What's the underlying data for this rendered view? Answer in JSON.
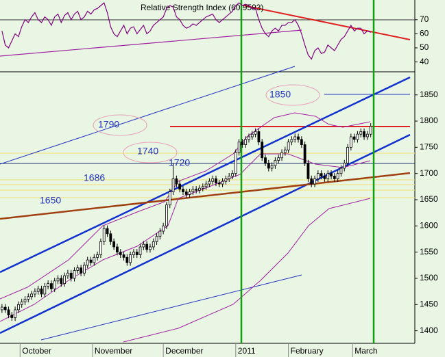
{
  "chart_data": [
    {
      "type": "line",
      "title": "Relative Strength Index (60.9593)",
      "color": "#800080",
      "xlim": [
        -0.6,
        125.4
      ],
      "ylim": [
        33,
        84
      ],
      "yticks": [
        40,
        50,
        60,
        70
      ],
      "values": [
        62,
        52,
        50,
        55,
        60,
        58,
        65,
        70,
        68,
        72,
        75,
        70,
        68,
        72,
        70,
        66,
        72,
        74,
        68,
        73,
        75,
        70,
        74,
        76,
        70,
        72,
        76,
        74,
        77,
        78,
        80,
        82,
        75,
        65,
        60,
        58,
        62,
        66,
        60,
        64,
        65,
        60,
        63,
        66,
        60,
        62,
        66,
        68,
        70,
        72,
        78,
        80,
        79,
        72,
        70,
        66,
        64,
        65,
        67,
        66,
        68,
        70,
        72,
        73,
        74,
        70,
        68,
        70,
        72,
        74,
        76,
        80,
        82,
        80,
        81,
        80,
        78,
        78,
        70,
        64,
        60,
        58,
        62,
        64,
        62,
        66,
        66,
        68,
        68,
        70,
        66,
        60,
        52,
        45,
        42,
        48,
        50,
        46,
        47,
        52,
        50,
        48,
        52,
        56,
        58,
        62,
        66,
        62,
        64,
        64,
        60,
        62,
        61
      ]
    },
    {
      "type": "candlestick",
      "xlim": [
        -0.6,
        125.4
      ],
      "ylim": [
        1376,
        1894
      ],
      "yticks": [
        1400,
        1450,
        1500,
        1550,
        1600,
        1650,
        1700,
        1750,
        1800,
        1850
      ],
      "xticks": [
        {
          "value": 5.5,
          "label": "October"
        },
        {
          "value": 27.5,
          "label": "November"
        },
        {
          "value": 49,
          "label": "December"
        },
        {
          "value": 71,
          "label": "2011"
        },
        {
          "value": 87,
          "label": "February"
        },
        {
          "value": 106.5,
          "label": "March"
        }
      ],
      "annotations": [
        "1850",
        "1790",
        "1740",
        "1720",
        "1686",
        "1650"
      ],
      "open": [
        1440,
        1445,
        1440,
        1430,
        1425,
        1440,
        1450,
        1455,
        1460,
        1465,
        1470,
        1475,
        1480,
        1470,
        1485,
        1490,
        1480,
        1495,
        1500,
        1490,
        1505,
        1510,
        1500,
        1515,
        1520,
        1510,
        1525,
        1535,
        1530,
        1540,
        1545,
        1570,
        1595,
        1585,
        1570,
        1560,
        1550,
        1545,
        1540,
        1530,
        1545,
        1550,
        1545,
        1560,
        1565,
        1555,
        1560,
        1570,
        1580,
        1590,
        1600,
        1640,
        1665,
        1690,
        1680,
        1670,
        1665,
        1660,
        1665,
        1670,
        1668,
        1672,
        1675,
        1680,
        1685,
        1690,
        1682,
        1680,
        1685,
        1690,
        1695,
        1700,
        1740,
        1760,
        1755,
        1765,
        1770,
        1775,
        1780,
        1760,
        1730,
        1720,
        1710,
        1715,
        1725,
        1730,
        1740,
        1745,
        1760,
        1765,
        1770,
        1765,
        1755,
        1720,
        1690,
        1680,
        1690,
        1700,
        1695,
        1690,
        1700,
        1695,
        1690,
        1700,
        1710,
        1720,
        1750,
        1770,
        1765,
        1775,
        1780,
        1770,
        1775
      ],
      "high": [
        1451,
        1451,
        1446,
        1436,
        1446,
        1456,
        1461,
        1466,
        1471,
        1476,
        1481,
        1486,
        1486,
        1491,
        1496,
        1496,
        1501,
        1506,
        1506,
        1511,
        1516,
        1516,
        1521,
        1526,
        1526,
        1531,
        1541,
        1541,
        1546,
        1551,
        1576,
        1601,
        1601,
        1591,
        1576,
        1566,
        1556,
        1551,
        1546,
        1551,
        1556,
        1556,
        1566,
        1571,
        1571,
        1566,
        1576,
        1586,
        1596,
        1606,
        1646,
        1671,
        1720,
        1696,
        1686,
        1676,
        1671,
        1671,
        1676,
        1676,
        1678,
        1681,
        1686,
        1691,
        1696,
        1696,
        1688,
        1691,
        1696,
        1701,
        1706,
        1746,
        1766,
        1766,
        1771,
        1776,
        1781,
        1786,
        1786,
        1766,
        1736,
        1726,
        1721,
        1731,
        1736,
        1746,
        1751,
        1766,
        1771,
        1776,
        1776,
        1771,
        1761,
        1726,
        1696,
        1696,
        1706,
        1706,
        1701,
        1706,
        1706,
        1701,
        1706,
        1716,
        1726,
        1756,
        1776,
        1776,
        1781,
        1786,
        1786,
        1781,
        1796
      ],
      "low": [
        1434,
        1434,
        1424,
        1419,
        1419,
        1434,
        1444,
        1449,
        1454,
        1459,
        1464,
        1469,
        1464,
        1464,
        1479,
        1474,
        1474,
        1489,
        1484,
        1484,
        1499,
        1494,
        1494,
        1509,
        1504,
        1504,
        1519,
        1524,
        1524,
        1534,
        1539,
        1564,
        1579,
        1564,
        1554,
        1544,
        1539,
        1534,
        1524,
        1524,
        1539,
        1539,
        1539,
        1554,
        1549,
        1549,
        1554,
        1564,
        1574,
        1584,
        1594,
        1634,
        1659,
        1674,
        1664,
        1659,
        1654,
        1654,
        1659,
        1662,
        1662,
        1666,
        1669,
        1674,
        1679,
        1676,
        1674,
        1674,
        1679,
        1684,
        1689,
        1694,
        1734,
        1749,
        1749,
        1759,
        1764,
        1769,
        1754,
        1724,
        1714,
        1704,
        1704,
        1709,
        1719,
        1724,
        1734,
        1739,
        1754,
        1759,
        1759,
        1749,
        1714,
        1684,
        1674,
        1674,
        1684,
        1689,
        1684,
        1684,
        1689,
        1684,
        1684,
        1694,
        1704,
        1714,
        1744,
        1759,
        1759,
        1769,
        1764,
        1764,
        1769
      ],
      "close": [
        1445,
        1440,
        1430,
        1425,
        1440,
        1450,
        1455,
        1460,
        1465,
        1470,
        1475,
        1480,
        1470,
        1485,
        1490,
        1480,
        1495,
        1500,
        1490,
        1505,
        1510,
        1500,
        1515,
        1520,
        1510,
        1525,
        1535,
        1530,
        1540,
        1545,
        1570,
        1595,
        1585,
        1570,
        1560,
        1550,
        1545,
        1540,
        1530,
        1545,
        1550,
        1545,
        1560,
        1565,
        1555,
        1560,
        1570,
        1580,
        1590,
        1600,
        1640,
        1665,
        1690,
        1680,
        1670,
        1665,
        1660,
        1665,
        1670,
        1668,
        1672,
        1675,
        1680,
        1685,
        1690,
        1682,
        1680,
        1685,
        1690,
        1695,
        1700,
        1740,
        1760,
        1755,
        1765,
        1770,
        1775,
        1780,
        1760,
        1730,
        1720,
        1710,
        1715,
        1725,
        1730,
        1740,
        1745,
        1760,
        1765,
        1770,
        1765,
        1755,
        1720,
        1690,
        1680,
        1690,
        1700,
        1695,
        1690,
        1700,
        1695,
        1690,
        1700,
        1710,
        1720,
        1750,
        1770,
        1765,
        1775,
        1780,
        1770,
        1775,
        1790
      ]
    }
  ]
}
